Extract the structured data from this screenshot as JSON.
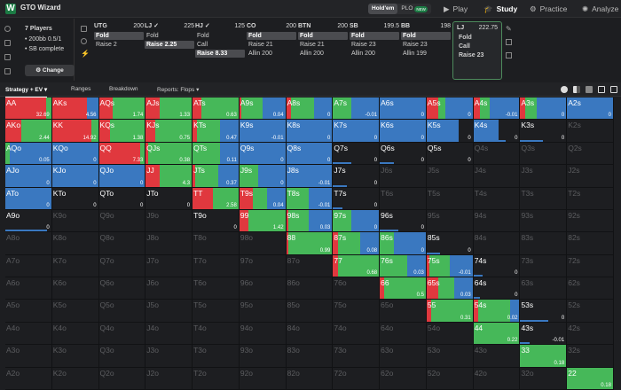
{
  "topbar": {
    "app_title": "GTO Wizard",
    "logo_letter": "W",
    "game_holdem": "Hold'em",
    "game_plo": "PLO",
    "plo_badge": "NEW",
    "nav": [
      {
        "label": "Play",
        "icon": "play-icon",
        "active": false
      },
      {
        "label": "Study",
        "icon": "study-icon",
        "active": true
      },
      {
        "label": "Practice",
        "icon": "practice-icon",
        "active": false
      },
      {
        "label": "Analyze",
        "icon": "analyze-icon",
        "active": false
      }
    ]
  },
  "info": {
    "players": "7 Players",
    "stack": "200bb 0.5/1",
    "status": "SB complete",
    "change_label": "Change"
  },
  "positions": [
    {
      "name": "UTG",
      "stack": "200",
      "actions": [
        "Fold",
        "Raise 2"
      ],
      "selected": 0
    },
    {
      "name": "LJ ✓",
      "stack": "225",
      "actions": [
        "Fold",
        "Raise 2.25"
      ],
      "selected": 1
    },
    {
      "name": "HJ ✓",
      "stack": "125",
      "actions": [
        "Fold",
        "Call",
        "Raise 8.33"
      ],
      "selected": 2
    },
    {
      "name": "CO",
      "stack": "200",
      "actions": [
        "Fold",
        "Raise 21",
        "Allin 200"
      ],
      "selected": 0
    },
    {
      "name": "BTN",
      "stack": "200",
      "actions": [
        "Fold",
        "Raise 21",
        "Allin 200"
      ],
      "selected": 0
    },
    {
      "name": "SB",
      "stack": "199.5",
      "actions": [
        "Fold",
        "Raise 23",
        "Allin 200"
      ],
      "selected": 0
    },
    {
      "name": "BB",
      "stack": "198",
      "actions": [
        "Fold",
        "Raise 23",
        "Allin 199"
      ],
      "selected": 0
    },
    {
      "name": "LJ",
      "stack": "222.75",
      "actions": [
        "Fold",
        "Call",
        "Raise 23"
      ],
      "selected": -1,
      "current": true
    }
  ],
  "toolbar": {
    "tabs": [
      "Strategy + EV",
      "Ranges",
      "Breakdown",
      "Reports: Flops"
    ]
  },
  "colors": {
    "raise": "#e0383e",
    "call": "#46b859",
    "fold": "#3a78c0",
    "empty": "#1d1e21"
  },
  "grid": {
    "cells": [
      [
        "AA",
        "AKs",
        "AQs",
        "AJs",
        "ATs",
        "A9s",
        "A8s",
        "A7s",
        "A6s",
        "A5s",
        "A4s",
        "A3s",
        "A2s"
      ],
      [
        "AKo",
        "KK",
        "KQs",
        "KJs",
        "KTs",
        "K9s",
        "K8s",
        "K7s",
        "K6s",
        "K5s",
        "K4s",
        "K3s",
        "K2s"
      ],
      [
        "AQo",
        "KQo",
        "QQ",
        "QJs",
        "QTs",
        "Q9s",
        "Q8s",
        "Q7s",
        "Q6s",
        "Q5s",
        "Q4s",
        "Q3s",
        "Q2s"
      ],
      [
        "AJo",
        "KJo",
        "QJo",
        "JJ",
        "JTs",
        "J9s",
        "J8s",
        "J7s",
        "J6s",
        "J5s",
        "J4s",
        "J3s",
        "J2s"
      ],
      [
        "ATo",
        "KTo",
        "QTo",
        "JTo",
        "TT",
        "T9s",
        "T8s",
        "T7s",
        "T6s",
        "T5s",
        "T4s",
        "T3s",
        "T2s"
      ],
      [
        "A9o",
        "K9o",
        "Q9o",
        "J9o",
        "T9o",
        "99",
        "98s",
        "97s",
        "96s",
        "95s",
        "94s",
        "93s",
        "92s"
      ],
      [
        "A8o",
        "K8o",
        "Q8o",
        "J8o",
        "T8o",
        "98o",
        "88",
        "87s",
        "86s",
        "85s",
        "84s",
        "83s",
        "82s"
      ],
      [
        "A7o",
        "K7o",
        "Q7o",
        "J7o",
        "T7o",
        "97o",
        "87o",
        "77",
        "76s",
        "75s",
        "74s",
        "73s",
        "72s"
      ],
      [
        "A6o",
        "K6o",
        "Q6o",
        "J6o",
        "T6o",
        "96o",
        "86o",
        "76o",
        "66",
        "65s",
        "64s",
        "63s",
        "62s"
      ],
      [
        "A5o",
        "K5o",
        "Q5o",
        "J5o",
        "T5o",
        "95o",
        "85o",
        "75o",
        "65o",
        "55",
        "54s",
        "53s",
        "52s"
      ],
      [
        "A4o",
        "K4o",
        "Q4o",
        "J4o",
        "T4o",
        "94o",
        "84o",
        "74o",
        "64o",
        "54o",
        "44",
        "43s",
        "42s"
      ],
      [
        "A3o",
        "K3o",
        "Q3o",
        "J3o",
        "T3o",
        "93o",
        "83o",
        "73o",
        "63o",
        "53o",
        "43o",
        "33",
        "32s"
      ],
      [
        "A2o",
        "K2o",
        "Q2o",
        "J2o",
        "T2o",
        "92o",
        "82o",
        "72o",
        "62o",
        "52o",
        "42o",
        "32o",
        "22"
      ]
    ],
    "evs": [
      [
        "32.69",
        "4.56",
        "1.74",
        "1.33",
        "0.63",
        "0.04",
        "0",
        "-0.01",
        "0",
        "0",
        "-0.01",
        "0",
        "0"
      ],
      [
        "2.44",
        "14.92",
        "1.38",
        "0.75",
        "0.47",
        "-0.01",
        "0",
        "0",
        "0",
        "0",
        "0",
        "0",
        ""
      ],
      [
        "0.05",
        "0",
        "7.33",
        "0.38",
        "0.11",
        "0",
        "0",
        "0",
        "0",
        "0",
        "",
        "",
        ""
      ],
      [
        "0",
        "0",
        "0",
        "4.3",
        "0.37",
        "0",
        "-0.01",
        "0",
        "",
        "",
        "",
        "",
        ""
      ],
      [
        "0",
        "0",
        "0",
        "0",
        "2.58",
        "0.04",
        "-0.01",
        "0",
        "",
        "",
        "",
        "",
        ""
      ],
      [
        "0",
        "",
        "",
        "",
        "0",
        "1.42",
        "0.03",
        "0",
        "0",
        "",
        "",
        "",
        ""
      ],
      [
        "",
        "",
        "",
        "",
        "",
        "",
        "0.99",
        "0.08",
        "0",
        "0",
        "",
        "",
        ""
      ],
      [
        "",
        "",
        "",
        "",
        "",
        "",
        "",
        "0.68",
        "0.03",
        "-0.01",
        "0",
        "",
        ""
      ],
      [
        "",
        "",
        "",
        "",
        "",
        "",
        "",
        "",
        "0.5",
        "0.03",
        "0",
        "",
        ""
      ],
      [
        "",
        "",
        "",
        "",
        "",
        "",
        "",
        "",
        "",
        "0.31",
        "0.02",
        "0",
        ""
      ],
      [
        "",
        "",
        "",
        "",
        "",
        "",
        "",
        "",
        "",
        "",
        "0.22",
        "-0.01",
        ""
      ],
      [
        "",
        "",
        "",
        "",
        "",
        "",
        "",
        "",
        "",
        "",
        "",
        "0.18",
        ""
      ],
      [
        "",
        "",
        "",
        "",
        "",
        "",
        "",
        "",
        "",
        "",
        "",
        "",
        "0.18"
      ]
    ],
    "freqs": [
      [
        [
          0.88,
          0.12,
          0
        ],
        [
          0.75,
          0,
          0.25
        ],
        [
          0.3,
          0.7,
          0
        ],
        [
          0.3,
          0.7,
          0
        ],
        [
          0.2,
          0.8,
          0
        ],
        [
          0.05,
          0.45,
          0.5
        ],
        [
          0.1,
          0.5,
          0.4
        ],
        [
          0,
          0.4,
          0.6
        ],
        [
          0,
          0,
          1
        ],
        [
          0.25,
          0.15,
          0.6
        ],
        [
          0.15,
          0.2,
          0.65
        ],
        [
          0.1,
          0.25,
          0.65
        ],
        [
          0,
          0,
          1
        ]
      ],
      [
        [
          0.35,
          0.65,
          0
        ],
        [
          0.85,
          0.15,
          0
        ],
        [
          0.25,
          0.75,
          0
        ],
        [
          0.2,
          0.8,
          0
        ],
        [
          0.1,
          0.5,
          0.4
        ],
        [
          0,
          0,
          1
        ],
        [
          0,
          0,
          1
        ],
        [
          0,
          0,
          1
        ],
        [
          0,
          0,
          1
        ],
        [
          0,
          0,
          0.7
        ],
        [
          0,
          0,
          0.55
        ],
        [
          0,
          0,
          0
        ],
        [
          0,
          0,
          0
        ]
      ],
      [
        [
          0,
          0.1,
          0.9
        ],
        [
          0,
          0,
          1
        ],
        [
          0.9,
          0.1,
          0
        ],
        [
          0.05,
          0.95,
          0
        ],
        [
          0,
          0.6,
          0.4
        ],
        [
          0,
          0,
          1
        ],
        [
          0,
          0,
          1
        ],
        [
          0,
          0,
          0
        ],
        [
          0,
          0,
          0
        ],
        [
          0,
          0,
          0
        ],
        [
          0,
          0,
          0
        ],
        [
          0,
          0,
          0
        ],
        [
          0,
          0,
          0
        ]
      ],
      [
        [
          0,
          0,
          1
        ],
        [
          0,
          0,
          1
        ],
        [
          0,
          0,
          1
        ],
        [
          0.3,
          0.7,
          0
        ],
        [
          0.05,
          0.5,
          0.45
        ],
        [
          0,
          0.4,
          0.6
        ],
        [
          0,
          0,
          1
        ],
        [
          0,
          0,
          0
        ],
        [
          0,
          0,
          0
        ],
        [
          0,
          0,
          0
        ],
        [
          0,
          0,
          0
        ],
        [
          0,
          0,
          0
        ],
        [
          0,
          0,
          0
        ]
      ],
      [
        [
          0,
          0,
          1
        ],
        [
          0,
          0,
          0
        ],
        [
          0,
          0,
          0
        ],
        [
          0,
          0,
          0
        ],
        [
          0.45,
          0.55,
          0
        ],
        [
          0.3,
          0.3,
          0.4
        ],
        [
          0,
          0.5,
          0.5
        ],
        [
          0,
          0,
          0
        ],
        [
          0,
          0,
          0
        ],
        [
          0,
          0,
          0
        ],
        [
          0,
          0,
          0
        ],
        [
          0,
          0,
          0
        ],
        [
          0,
          0,
          0
        ]
      ],
      [
        [
          0,
          0,
          0
        ],
        [
          0,
          0,
          0
        ],
        [
          0,
          0,
          0
        ],
        [
          0,
          0,
          0
        ],
        [
          0,
          0,
          0
        ],
        [
          0.2,
          0.8,
          0
        ],
        [
          0.05,
          0.45,
          0.5
        ],
        [
          0,
          0.4,
          0.6
        ],
        [
          0,
          0,
          0
        ],
        [
          0,
          0,
          0
        ],
        [
          0,
          0,
          0
        ],
        [
          0,
          0,
          0
        ],
        [
          0,
          0,
          0
        ]
      ],
      [
        [
          0,
          0,
          0
        ],
        [
          0,
          0,
          0
        ],
        [
          0,
          0,
          0
        ],
        [
          0,
          0,
          0
        ],
        [
          0,
          0,
          0
        ],
        [
          0,
          0,
          0
        ],
        [
          0.05,
          0.95,
          0
        ],
        [
          0.1,
          0.5,
          0.4
        ],
        [
          0,
          0.3,
          0.7
        ],
        [
          0,
          0,
          0
        ],
        [
          0,
          0,
          0
        ],
        [
          0,
          0,
          0
        ],
        [
          0,
          0,
          0
        ]
      ],
      [
        [
          0,
          0,
          0
        ],
        [
          0,
          0,
          0
        ],
        [
          0,
          0,
          0
        ],
        [
          0,
          0,
          0
        ],
        [
          0,
          0,
          0
        ],
        [
          0,
          0,
          0
        ],
        [
          0,
          0,
          0
        ],
        [
          0.1,
          0.9,
          0
        ],
        [
          0,
          0.6,
          0.4
        ],
        [
          0.05,
          0.45,
          0.5
        ],
        [
          0,
          0,
          0
        ],
        [
          0,
          0,
          0
        ],
        [
          0,
          0,
          0
        ]
      ],
      [
        [
          0,
          0,
          0
        ],
        [
          0,
          0,
          0
        ],
        [
          0,
          0,
          0
        ],
        [
          0,
          0,
          0
        ],
        [
          0,
          0,
          0
        ],
        [
          0,
          0,
          0
        ],
        [
          0,
          0,
          0
        ],
        [
          0,
          0,
          0
        ],
        [
          0.1,
          0.9,
          0
        ],
        [
          0.25,
          0.35,
          0.4
        ],
        [
          0,
          0,
          0
        ],
        [
          0,
          0,
          0
        ],
        [
          0,
          0,
          0
        ]
      ],
      [
        [
          0,
          0,
          0
        ],
        [
          0,
          0,
          0
        ],
        [
          0,
          0,
          0
        ],
        [
          0,
          0,
          0
        ],
        [
          0,
          0,
          0
        ],
        [
          0,
          0,
          0
        ],
        [
          0,
          0,
          0
        ],
        [
          0,
          0,
          0
        ],
        [
          0,
          0,
          0
        ],
        [
          0.1,
          0.9,
          0
        ],
        [
          0.1,
          0.7,
          0.2
        ],
        [
          0,
          0,
          0
        ],
        [
          0,
          0,
          0
        ]
      ],
      [
        [
          0,
          0,
          0
        ],
        [
          0,
          0,
          0
        ],
        [
          0,
          0,
          0
        ],
        [
          0,
          0,
          0
        ],
        [
          0,
          0,
          0
        ],
        [
          0,
          0,
          0
        ],
        [
          0,
          0,
          0
        ],
        [
          0,
          0,
          0
        ],
        [
          0,
          0,
          0
        ],
        [
          0,
          0,
          0
        ],
        [
          0,
          1,
          0
        ],
        [
          0,
          0,
          0
        ],
        [
          0,
          0,
          0
        ]
      ],
      [
        [
          0,
          0,
          0
        ],
        [
          0,
          0,
          0
        ],
        [
          0,
          0,
          0
        ],
        [
          0,
          0,
          0
        ],
        [
          0,
          0,
          0
        ],
        [
          0,
          0,
          0
        ],
        [
          0,
          0,
          0
        ],
        [
          0,
          0,
          0
        ],
        [
          0,
          0,
          0
        ],
        [
          0,
          0,
          0
        ],
        [
          0,
          0,
          0
        ],
        [
          0,
          1,
          0
        ],
        [
          0,
          0,
          0
        ]
      ],
      [
        [
          0,
          0,
          0
        ],
        [
          0,
          0,
          0
        ],
        [
          0,
          0,
          0
        ],
        [
          0,
          0,
          0
        ],
        [
          0,
          0,
          0
        ],
        [
          0,
          0,
          0
        ],
        [
          0,
          0,
          0
        ],
        [
          0,
          0,
          0
        ],
        [
          0,
          0,
          0
        ],
        [
          0,
          0,
          0
        ],
        [
          0,
          0,
          0
        ],
        [
          0,
          0,
          0
        ],
        [
          0,
          1,
          0
        ]
      ]
    ],
    "underline": [
      [
        0,
        0,
        0,
        0,
        0,
        0,
        0,
        0,
        0,
        0,
        0,
        0,
        0
      ],
      [
        0,
        0,
        0,
        0,
        0,
        0,
        0,
        0,
        0,
        0,
        0.7,
        0.5,
        0
      ],
      [
        0,
        0,
        0,
        0,
        0,
        0,
        0,
        0.4,
        0.3,
        0,
        0,
        0,
        0
      ],
      [
        0,
        0,
        0,
        0,
        0,
        0,
        0,
        0.3,
        0,
        0,
        0,
        0,
        0
      ],
      [
        0,
        0,
        0,
        0,
        0,
        0,
        0,
        0.2,
        0,
        0,
        0,
        0,
        0
      ],
      [
        0.9,
        0,
        0,
        0,
        0,
        0,
        0,
        0,
        0.4,
        0,
        0,
        0,
        0
      ],
      [
        0,
        0,
        0,
        0,
        0,
        0,
        0,
        0,
        0,
        0.3,
        0,
        0,
        0
      ],
      [
        0,
        0,
        0,
        0,
        0,
        0,
        0,
        0,
        0,
        0,
        0.2,
        0,
        0
      ],
      [
        0,
        0,
        0,
        0,
        0,
        0,
        0,
        0,
        0,
        0,
        0.15,
        0,
        0
      ],
      [
        0,
        0,
        0,
        0,
        0,
        0,
        0,
        0,
        0,
        0,
        0,
        0.6,
        0
      ],
      [
        0,
        0,
        0,
        0,
        0,
        0,
        0,
        0,
        0,
        0,
        0,
        0.2,
        0
      ],
      [
        0,
        0,
        0,
        0,
        0,
        0,
        0,
        0,
        0,
        0,
        0,
        0,
        0
      ],
      [
        0,
        0,
        0,
        0,
        0,
        0,
        0,
        0,
        0,
        0,
        0,
        0,
        0
      ]
    ]
  }
}
